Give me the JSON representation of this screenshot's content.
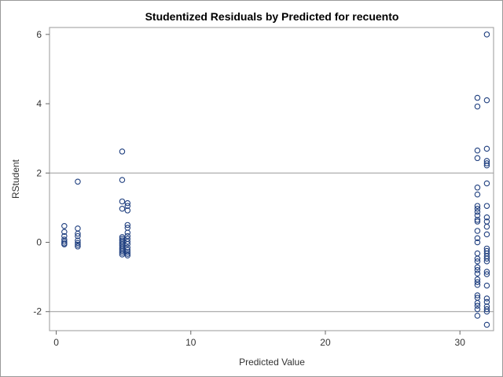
{
  "chart_data": {
    "type": "scatter",
    "title": "Studentized Residuals by Predicted for recuento",
    "xlabel": "Predicted Value",
    "ylabel": "RStudent",
    "xlim": [
      -0.5,
      32.5
    ],
    "ylim": [
      -2.55,
      6.2
    ],
    "x_ticks": [
      0,
      10,
      20,
      30
    ],
    "y_ticks": [
      -2,
      0,
      2,
      4,
      6
    ],
    "reference_lines_y": [
      -2,
      2
    ],
    "grid": false,
    "legend": "none",
    "colors": {
      "marker": "#1f3f7f",
      "reference_line": "#999999",
      "frame": "#999999",
      "background": "#ffffff"
    },
    "series": [
      {
        "points": [
          [
            0.6,
            0.47
          ],
          [
            0.6,
            0.3
          ],
          [
            0.6,
            0.18
          ],
          [
            0.6,
            0.08
          ],
          [
            0.6,
            0.02
          ],
          [
            0.6,
            -0.03
          ],
          [
            0.6,
            -0.06
          ],
          [
            1.6,
            1.75
          ],
          [
            1.6,
            0.4
          ],
          [
            1.6,
            0.25
          ],
          [
            1.6,
            0.18
          ],
          [
            1.6,
            0.05
          ],
          [
            1.6,
            -0.02
          ],
          [
            1.6,
            -0.07
          ],
          [
            1.6,
            -0.12
          ],
          [
            4.9,
            2.62
          ],
          [
            4.9,
            1.8
          ],
          [
            4.9,
            1.18
          ],
          [
            4.9,
            0.97
          ],
          [
            4.9,
            0.15
          ],
          [
            4.9,
            0.1
          ],
          [
            4.9,
            0.05
          ],
          [
            4.9,
            0.0
          ],
          [
            4.9,
            -0.05
          ],
          [
            4.9,
            -0.1
          ],
          [
            4.9,
            -0.15
          ],
          [
            4.9,
            -0.2
          ],
          [
            4.9,
            -0.25
          ],
          [
            4.9,
            -0.3
          ],
          [
            4.9,
            -0.35
          ],
          [
            5.3,
            1.13
          ],
          [
            5.3,
            1.05
          ],
          [
            5.3,
            0.92
          ],
          [
            5.3,
            0.5
          ],
          [
            5.3,
            0.42
          ],
          [
            5.3,
            0.28
          ],
          [
            5.3,
            0.18
          ],
          [
            5.3,
            0.1
          ],
          [
            5.3,
            0.02
          ],
          [
            5.3,
            -0.05
          ],
          [
            5.3,
            -0.15
          ],
          [
            5.3,
            -0.22
          ],
          [
            5.3,
            -0.28
          ],
          [
            5.3,
            -0.33
          ],
          [
            5.3,
            -0.38
          ],
          [
            31.3,
            4.17
          ],
          [
            31.3,
            3.92
          ],
          [
            31.3,
            2.65
          ],
          [
            31.3,
            2.43
          ],
          [
            31.3,
            1.58
          ],
          [
            31.3,
            1.38
          ],
          [
            31.3,
            1.05
          ],
          [
            31.3,
            0.97
          ],
          [
            31.3,
            0.88
          ],
          [
            31.3,
            0.78
          ],
          [
            31.3,
            0.65
          ],
          [
            31.3,
            0.6
          ],
          [
            31.3,
            0.33
          ],
          [
            31.3,
            0.12
          ],
          [
            31.3,
            0.0
          ],
          [
            31.3,
            -0.32
          ],
          [
            31.3,
            -0.47
          ],
          [
            31.3,
            -0.55
          ],
          [
            31.3,
            -0.72
          ],
          [
            31.3,
            -0.8
          ],
          [
            31.3,
            -0.9
          ],
          [
            31.3,
            -1.07
          ],
          [
            31.3,
            -1.15
          ],
          [
            31.3,
            -1.23
          ],
          [
            31.3,
            -1.53
          ],
          [
            31.3,
            -1.6
          ],
          [
            31.3,
            -1.75
          ],
          [
            31.3,
            -1.83
          ],
          [
            31.3,
            -1.93
          ],
          [
            31.3,
            -2.12
          ],
          [
            32.0,
            6.0
          ],
          [
            32.0,
            4.1
          ],
          [
            32.0,
            2.7
          ],
          [
            32.0,
            2.35
          ],
          [
            32.0,
            2.28
          ],
          [
            32.0,
            2.22
          ],
          [
            32.0,
            1.7
          ],
          [
            32.0,
            1.05
          ],
          [
            32.0,
            0.72
          ],
          [
            32.0,
            0.6
          ],
          [
            32.0,
            0.45
          ],
          [
            32.0,
            0.23
          ],
          [
            32.0,
            -0.18
          ],
          [
            32.0,
            -0.25
          ],
          [
            32.0,
            -0.32
          ],
          [
            32.0,
            -0.4
          ],
          [
            32.0,
            -0.47
          ],
          [
            32.0,
            -0.55
          ],
          [
            32.0,
            -0.85
          ],
          [
            32.0,
            -0.92
          ],
          [
            32.0,
            -1.25
          ],
          [
            32.0,
            -1.62
          ],
          [
            32.0,
            -1.72
          ],
          [
            32.0,
            -1.85
          ],
          [
            32.0,
            -1.93
          ],
          [
            32.0,
            -2.0
          ],
          [
            32.0,
            -2.38
          ]
        ]
      }
    ]
  }
}
